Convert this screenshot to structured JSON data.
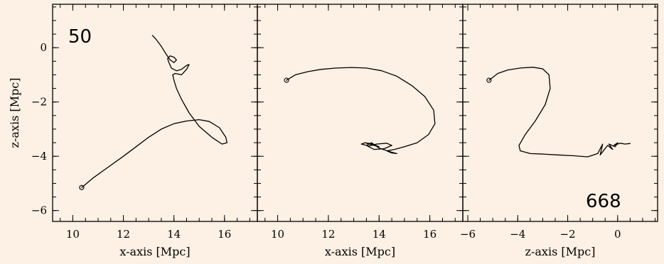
{
  "chart_data": [
    {
      "type": "line",
      "panel_label": "50",
      "xlabel": "x-axis [Mpc]",
      "ylabel": "z-axis [Mpc]",
      "xlim": [
        9.2,
        17.3
      ],
      "ylim": [
        -6.4,
        1.6
      ],
      "xticks": [
        10,
        12,
        14,
        16
      ],
      "xtick_labels": [
        "10",
        "12",
        "14",
        "16"
      ],
      "yticks": [
        0,
        -2,
        -4,
        -6
      ],
      "ytick_labels": [
        "0",
        "−2",
        "−4",
        "−6"
      ],
      "grid": false,
      "start_marker": [
        10.35,
        -5.15
      ],
      "series": [
        {
          "x": [
            10.35,
            10.8,
            11.4,
            12.0,
            12.5,
            13.0,
            13.5,
            14.0,
            14.5,
            15.0,
            15.4,
            15.8,
            16.05,
            16.1,
            15.9,
            15.5,
            15.0,
            14.6,
            14.3,
            14.1,
            14.0,
            13.95,
            14.05,
            14.3,
            14.5,
            14.6,
            14.5,
            14.3,
            14.1,
            13.9,
            13.8,
            13.75,
            13.85,
            14.0,
            14.1,
            14.0,
            13.85,
            13.7,
            13.5,
            13.3,
            13.15
          ],
          "y": [
            -5.15,
            -4.8,
            -4.4,
            -4.0,
            -3.65,
            -3.3,
            -3.0,
            -2.8,
            -2.7,
            -2.65,
            -2.72,
            -2.95,
            -3.3,
            -3.5,
            -3.55,
            -3.3,
            -2.9,
            -2.4,
            -1.9,
            -1.5,
            -1.2,
            -1.0,
            -0.95,
            -1.0,
            -0.8,
            -0.62,
            -0.65,
            -0.8,
            -0.85,
            -0.75,
            -0.55,
            -0.4,
            -0.3,
            -0.35,
            -0.45,
            -0.55,
            -0.45,
            -0.25,
            0.05,
            0.3,
            0.45
          ]
        }
      ]
    },
    {
      "type": "line",
      "panel_label": "",
      "xlabel": "x-axis [Mpc]",
      "ylabel": "",
      "xlim": [
        9.2,
        17.3
      ],
      "ylim": [
        -6.4,
        1.6
      ],
      "xticks": [
        10,
        12,
        14,
        16
      ],
      "xtick_labels": [
        "10",
        "12",
        "14",
        "16"
      ],
      "grid": false,
      "start_marker": [
        10.35,
        -1.2
      ],
      "series": [
        {
          "x": [
            10.35,
            10.7,
            11.2,
            11.7,
            12.3,
            12.9,
            13.5,
            14.1,
            14.7,
            15.3,
            15.8,
            16.15,
            16.2,
            15.95,
            15.5,
            15.0,
            14.6,
            14.3,
            14.5,
            14.7,
            14.5,
            14.0,
            13.7,
            13.5,
            13.8,
            14.2,
            14.5,
            14.3,
            13.9,
            13.6,
            13.3,
            13.45,
            13.75,
            14.0,
            13.8,
            13.5
          ],
          "y": [
            -1.2,
            -1.0,
            -0.88,
            -0.8,
            -0.75,
            -0.73,
            -0.75,
            -0.85,
            -1.05,
            -1.4,
            -1.8,
            -2.3,
            -2.8,
            -3.2,
            -3.5,
            -3.65,
            -3.75,
            -3.8,
            -3.88,
            -3.9,
            -3.85,
            -3.7,
            -3.5,
            -3.6,
            -3.75,
            -3.72,
            -3.6,
            -3.52,
            -3.55,
            -3.62,
            -3.55,
            -3.5,
            -3.55,
            -3.65,
            -3.6,
            -3.52
          ]
        }
      ]
    },
    {
      "type": "line",
      "panel_label": "668",
      "xlabel": "z-axis [Mpc]",
      "ylabel": "",
      "xlim": [
        -6.2,
        1.6
      ],
      "ylim": [
        -6.4,
        1.6
      ],
      "xticks": [
        -6,
        -4,
        -2,
        0
      ],
      "xtick_labels": [
        "−6",
        "−4",
        "−2",
        "0"
      ],
      "grid": false,
      "start_marker": [
        -5.15,
        -1.2
      ],
      "series": [
        {
          "x": [
            -5.15,
            -4.8,
            -4.4,
            -3.9,
            -3.4,
            -3.0,
            -2.75,
            -2.7,
            -2.9,
            -3.3,
            -3.7,
            -3.95,
            -3.9,
            -3.5,
            -3.0,
            -2.4,
            -1.8,
            -1.2,
            -0.8,
            -0.6,
            -0.7,
            -0.4,
            -0.2,
            -0.35,
            -0.1,
            0.0,
            -0.15,
            0.1,
            0.3,
            0.5
          ],
          "y": [
            -1.2,
            -0.95,
            -0.82,
            -0.75,
            -0.72,
            -0.78,
            -1.0,
            -1.5,
            -2.1,
            -2.7,
            -3.2,
            -3.6,
            -3.8,
            -3.9,
            -3.92,
            -3.95,
            -3.98,
            -4.02,
            -3.9,
            -3.55,
            -3.95,
            -3.6,
            -3.75,
            -3.55,
            -3.65,
            -3.5,
            -3.6,
            -3.52,
            -3.55,
            -3.53
          ]
        }
      ]
    }
  ]
}
